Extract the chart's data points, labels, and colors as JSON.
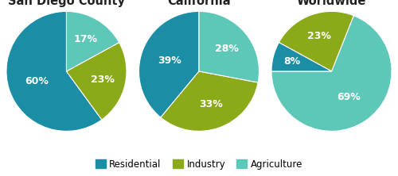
{
  "charts": [
    {
      "title": "San Diego County",
      "slices": [
        60,
        23,
        17
      ],
      "labels": [
        "60%",
        "23%",
        "17%"
      ],
      "colors": [
        "#1b8ea6",
        "#8aaa1a",
        "#5ec8b8"
      ],
      "startangle": 90,
      "label_offsets": [
        0.52,
        0.62,
        0.62
      ]
    },
    {
      "title": "California",
      "slices": [
        39,
        33,
        28
      ],
      "labels": [
        "39%",
        "33%",
        "28%"
      ],
      "colors": [
        "#1b8ea6",
        "#8aaa1a",
        "#5ec8b8"
      ],
      "startangle": 90,
      "label_offsets": [
        0.52,
        0.58,
        0.6
      ]
    },
    {
      "title": "Worldwide",
      "slices": [
        69,
        23,
        8
      ],
      "labels": [
        "69%",
        "23%",
        "8%"
      ],
      "colors": [
        "#5ec8b8",
        "#8aaa1a",
        "#1b8ea6"
      ],
      "startangle": 180,
      "label_offsets": [
        0.52,
        0.62,
        0.68
      ]
    }
  ],
  "legend_labels": [
    "Residential",
    "Industry",
    "Agriculture"
  ],
  "legend_colors": [
    "#1b8ea6",
    "#8aaa1a",
    "#5ec8b8"
  ],
  "bg_color": "#ffffff",
  "text_color": "#222222",
  "title_fontsize": 10.5,
  "label_fontsize": 9
}
